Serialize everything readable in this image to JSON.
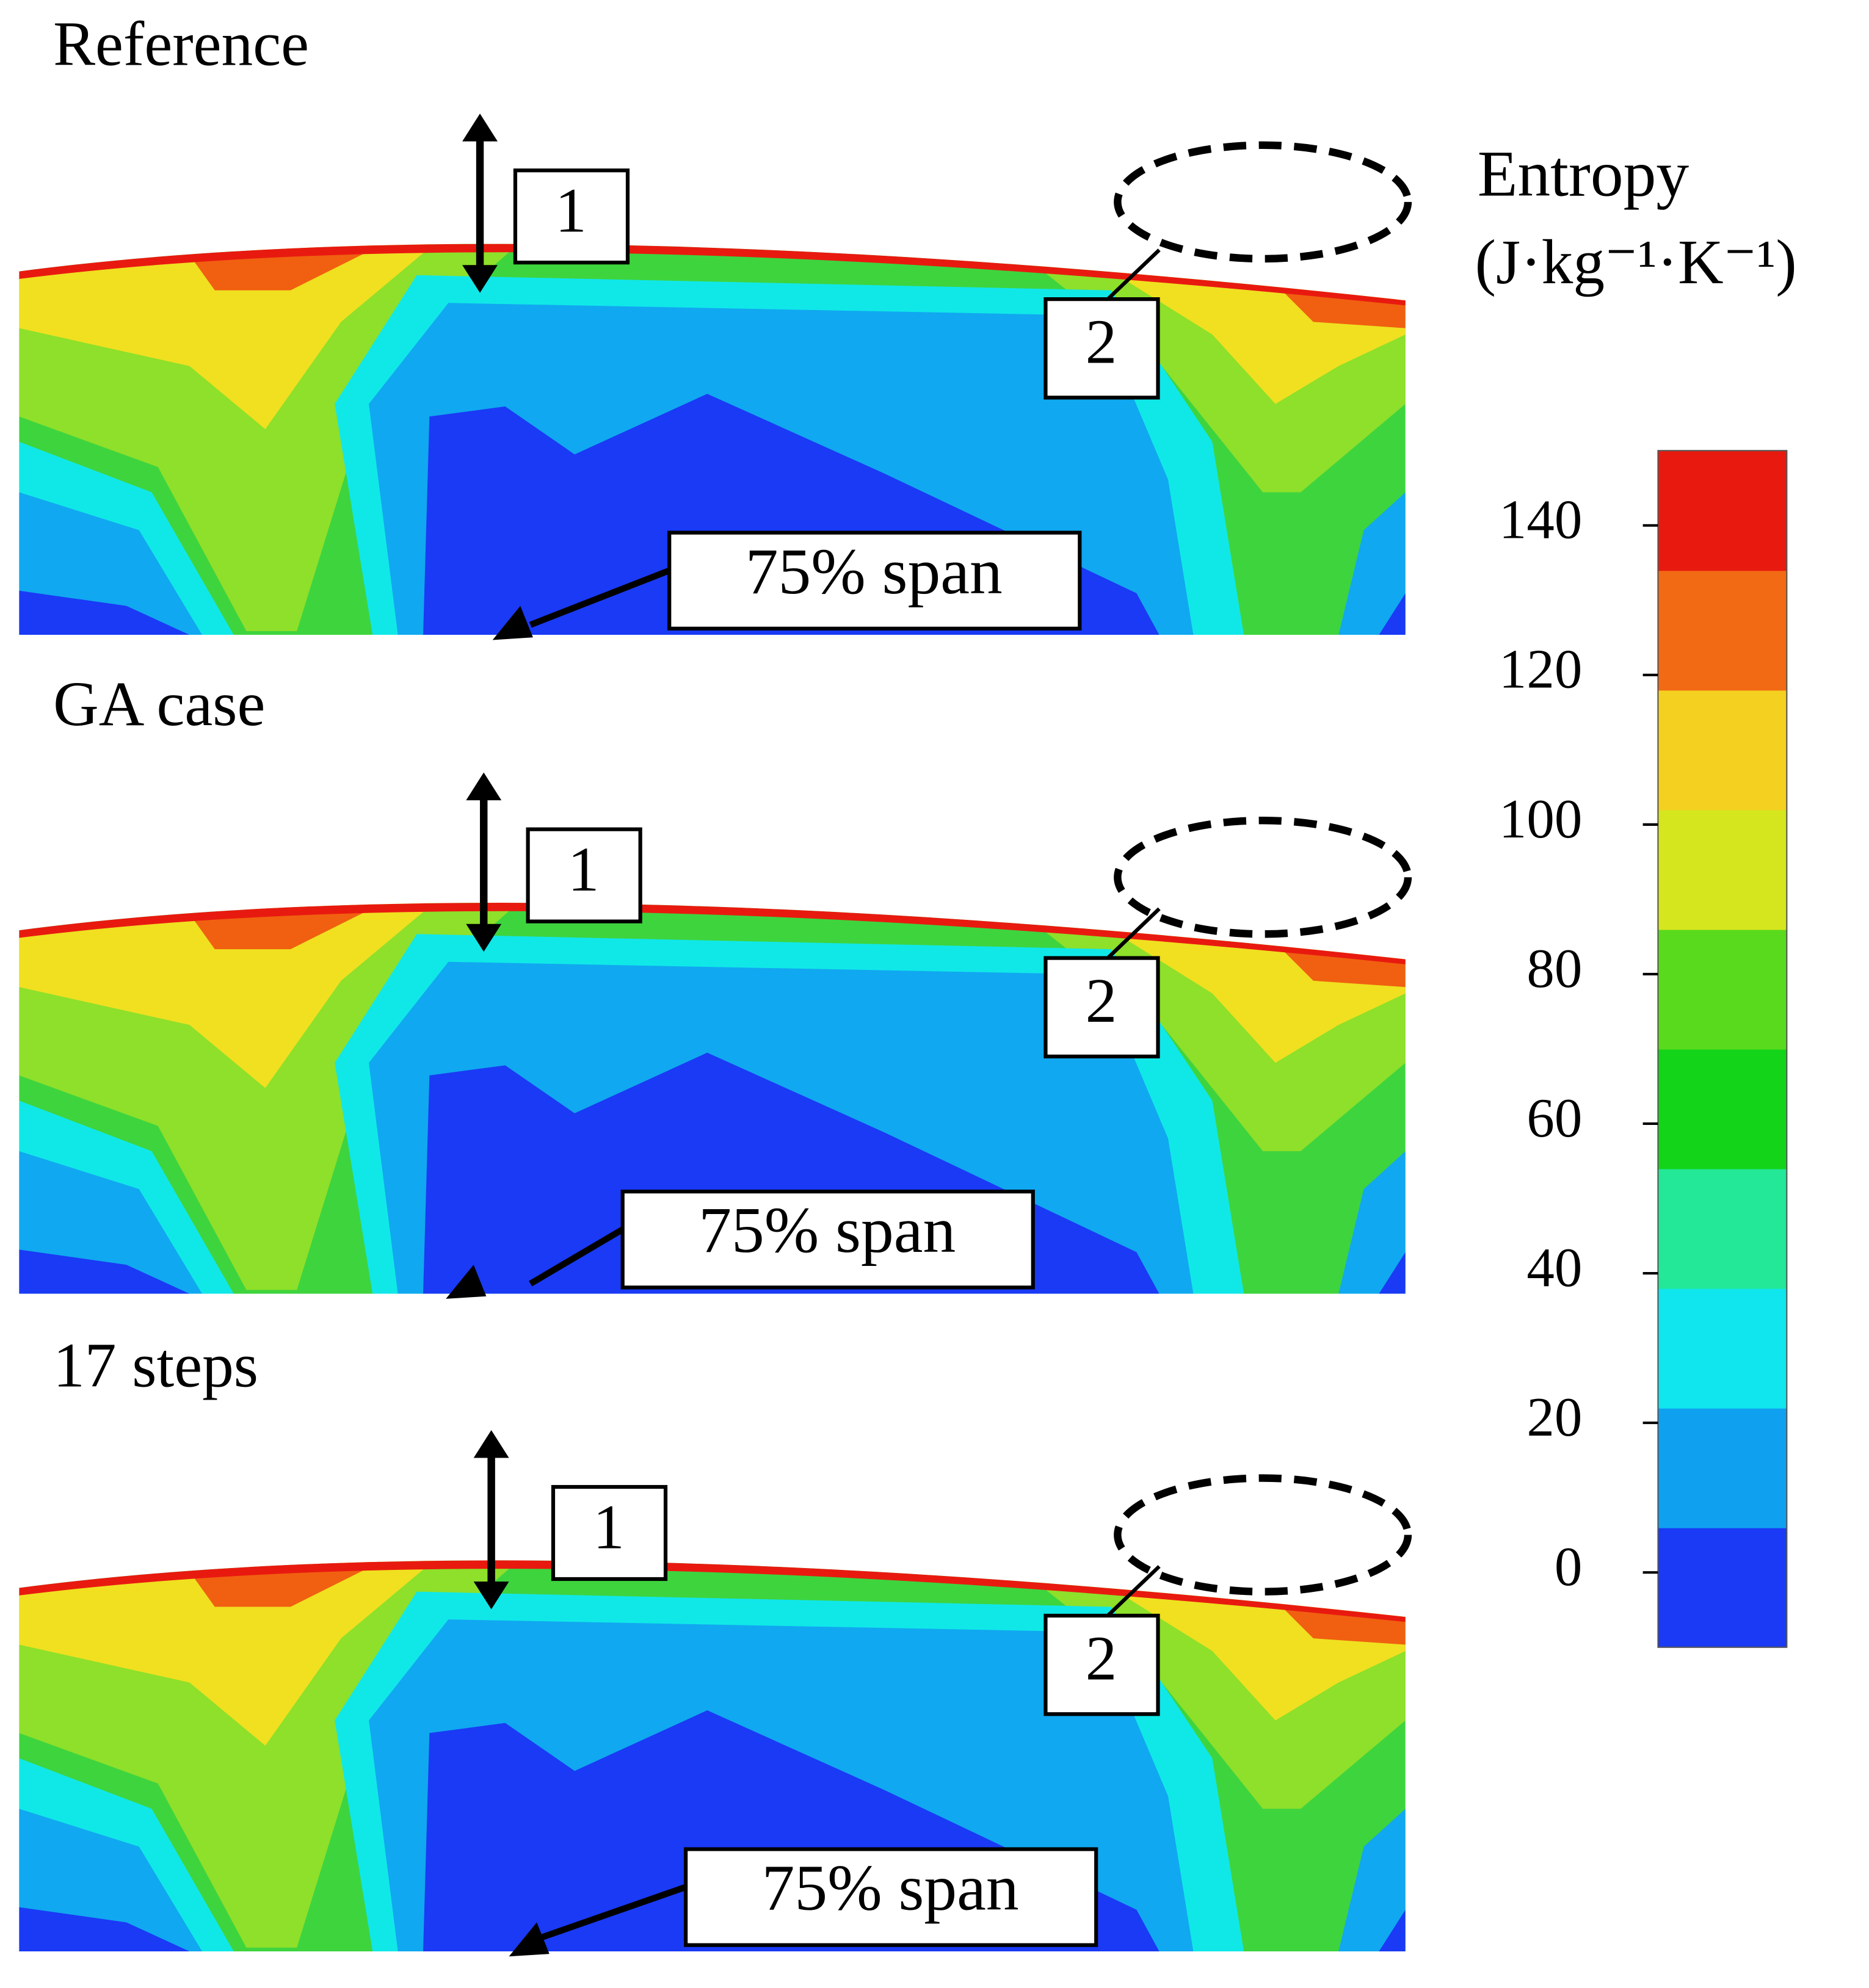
{
  "panels": [
    {
      "title": "Reference",
      "marker_1": "1",
      "marker_2": "2",
      "span_label": "75% span"
    },
    {
      "title": "GA case",
      "marker_1": "1",
      "marker_2": "2",
      "span_label": "75% span"
    },
    {
      "title": "17 steps",
      "marker_1": "1",
      "marker_2": "2",
      "span_label": "75% span"
    }
  ],
  "colorbar": {
    "title": "Entropy",
    "unit": "(J·kg⁻¹·K⁻¹)",
    "lim": [
      -10,
      150
    ],
    "ticks": [
      0,
      20,
      40,
      60,
      80,
      100,
      120,
      140
    ],
    "colors": [
      "#1a3af5",
      "#10a0f0",
      "#10e6ee",
      "#22e898",
      "#14d41a",
      "#5ada1c",
      "#d6e61e",
      "#f4d020",
      "#f26a14",
      "#e81a10"
    ]
  }
}
